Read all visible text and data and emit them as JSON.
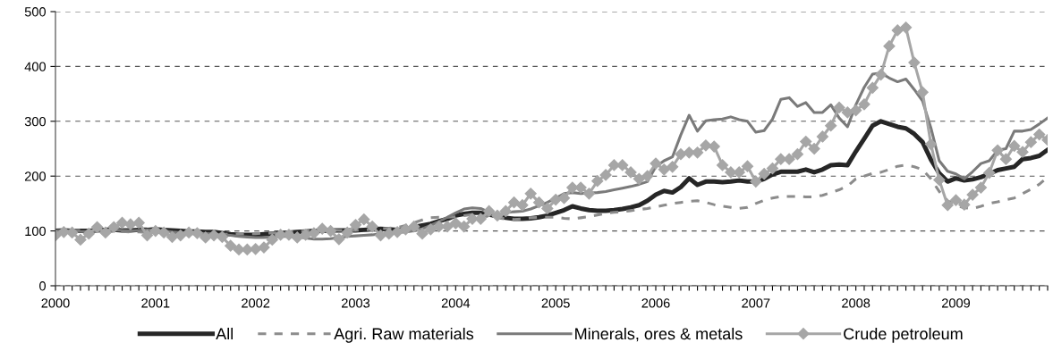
{
  "chart_data": {
    "type": "line",
    "categories": [
      "2000",
      null,
      null,
      null,
      null,
      null,
      null,
      null,
      null,
      null,
      null,
      null,
      "2001",
      null,
      null,
      null,
      null,
      null,
      null,
      null,
      null,
      null,
      null,
      null,
      "2002",
      null,
      null,
      null,
      null,
      null,
      null,
      null,
      null,
      null,
      null,
      null,
      "2003",
      null,
      null,
      null,
      null,
      null,
      null,
      null,
      null,
      null,
      null,
      null,
      "2004",
      null,
      null,
      null,
      null,
      null,
      null,
      null,
      null,
      null,
      null,
      null,
      "2005",
      null,
      null,
      null,
      null,
      null,
      null,
      null,
      null,
      null,
      null,
      null,
      "2006",
      null,
      null,
      null,
      null,
      null,
      null,
      null,
      null,
      null,
      null,
      null,
      "2007",
      null,
      null,
      null,
      null,
      null,
      null,
      null,
      null,
      null,
      null,
      null,
      "2008",
      null,
      null,
      null,
      null,
      null,
      null,
      null,
      null,
      null,
      null,
      null,
      "2009",
      null,
      null,
      null,
      null,
      null,
      null,
      null,
      null,
      null,
      null,
      null
    ],
    "series": [
      {
        "name": "All",
        "color": "#262626",
        "line_style": "solid",
        "marker": "none",
        "values": [
          100,
          101,
          100,
          100,
          100,
          101,
          102,
          102,
          101,
          101,
          102,
          102,
          103,
          102,
          101,
          100,
          99,
          99,
          98,
          98,
          96,
          94,
          93,
          93,
          93,
          94,
          95,
          96,
          97,
          98,
          99,
          100,
          100,
          101,
          101,
          101,
          101,
          102,
          103,
          104,
          103,
          102,
          103,
          107,
          110,
          113,
          118,
          122,
          128,
          131,
          133,
          133,
          130,
          127,
          124,
          122,
          122,
          123,
          125,
          128,
          133,
          138,
          145,
          141,
          138,
          137,
          137,
          138,
          140,
          143,
          147,
          155,
          166,
          173,
          170,
          180,
          196,
          184,
          190,
          190,
          189,
          190,
          192,
          190,
          190,
          195,
          203,
          208,
          208,
          208,
          212,
          207,
          212,
          220,
          221,
          220,
          245,
          268,
          292,
          300,
          295,
          290,
          287,
          277,
          262,
          230,
          205,
          190,
          196,
          192,
          194,
          198,
          204,
          211,
          214,
          217,
          231,
          233,
          237,
          248
        ]
      },
      {
        "name": "Agri. Raw materials",
        "color": "#8c8c8c",
        "line_style": "dashed",
        "marker": "none",
        "values": [
          100,
          100,
          101,
          101,
          100,
          100,
          99,
          99,
          99,
          98,
          98,
          97,
          97,
          97,
          96,
          96,
          95,
          95,
          95,
          94,
          94,
          94,
          94,
          95,
          95,
          96,
          96,
          97,
          98,
          99,
          100,
          101,
          102,
          102,
          101,
          101,
          101,
          102,
          103,
          104,
          105,
          106,
          110,
          115,
          120,
          124,
          125,
          125,
          126,
          128,
          130,
          128,
          126,
          124,
          122,
          121,
          122,
          124,
          125,
          125,
          125,
          123,
          122,
          124,
          126,
          129,
          132,
          134,
          135,
          137,
          139,
          141,
          144,
          147,
          150,
          152,
          154,
          155,
          152,
          148,
          145,
          143,
          141,
          143,
          150,
          156,
          160,
          163,
          163,
          163,
          162,
          162,
          165,
          170,
          175,
          182,
          195,
          200,
          205,
          207,
          212,
          218,
          220,
          217,
          212,
          195,
          172,
          155,
          147,
          142,
          141,
          145,
          150,
          153,
          157,
          160,
          168,
          176,
          185,
          198
        ]
      },
      {
        "name": "Minerals, ores & metals",
        "color": "#7a7a7a",
        "line_style": "solid",
        "marker": "none",
        "values": [
          100,
          101,
          100,
          99,
          99,
          100,
          101,
          102,
          101,
          100,
          101,
          102,
          101,
          100,
          98,
          97,
          96,
          96,
          95,
          94,
          93,
          92,
          90,
          89,
          88,
          88,
          89,
          90,
          90,
          89,
          87,
          85,
          85,
          86,
          88,
          90,
          91,
          92,
          93,
          95,
          96,
          97,
          98,
          100,
          104,
          110,
          117,
          125,
          133,
          140,
          142,
          141,
          134,
          130,
          133,
          135,
          136,
          140,
          146,
          152,
          160,
          168,
          170,
          168,
          169,
          170,
          172,
          175,
          178,
          181,
          185,
          190,
          217,
          228,
          235,
          275,
          311,
          282,
          301,
          303,
          304,
          308,
          303,
          300,
          280,
          283,
          304,
          340,
          343,
          327,
          334,
          316,
          316,
          330,
          306,
          290,
          330,
          362,
          386,
          388,
          379,
          372,
          377,
          358,
          337,
          288,
          228,
          209,
          204,
          195,
          208,
          223,
          228,
          247,
          250,
          282,
          282,
          285,
          295,
          306
        ]
      },
      {
        "name": "Crude petroleum",
        "color": "#a6a6a6",
        "line_style": "solid",
        "marker": "diamond",
        "values": [
          92,
          98,
          97,
          84,
          95,
          107,
          97,
          107,
          115,
          112,
          115,
          92,
          100,
          97,
          89,
          92,
          97,
          96,
          88,
          92,
          89,
          73,
          66,
          66,
          67,
          70,
          84,
          93,
          93,
          88,
          93,
          96,
          104,
          100,
          85,
          97,
          111,
          121,
          108,
          92,
          95,
          98,
          103,
          108,
          95,
          103,
          108,
          108,
          114,
          108,
          122,
          122,
          136,
          128,
          136,
          152,
          147,
          168,
          152,
          141,
          157,
          160,
          179,
          179,
          168,
          191,
          202,
          220,
          220,
          207,
          195,
          200,
          223,
          212,
          217,
          240,
          243,
          243,
          256,
          254,
          220,
          207,
          207,
          218,
          190,
          204,
          214,
          231,
          231,
          240,
          263,
          250,
          272,
          292,
          325,
          316,
          320,
          331,
          361,
          385,
          437,
          466,
          471,
          407,
          353,
          258,
          193,
          147,
          156,
          148,
          166,
          179,
          206,
          247,
          231,
          255,
          244,
          262,
          276,
          266
        ]
      }
    ],
    "ylim": [
      0,
      500
    ],
    "yticks": [
      0,
      100,
      200,
      300,
      400,
      500
    ],
    "grid": "y",
    "legend": "bottom"
  }
}
